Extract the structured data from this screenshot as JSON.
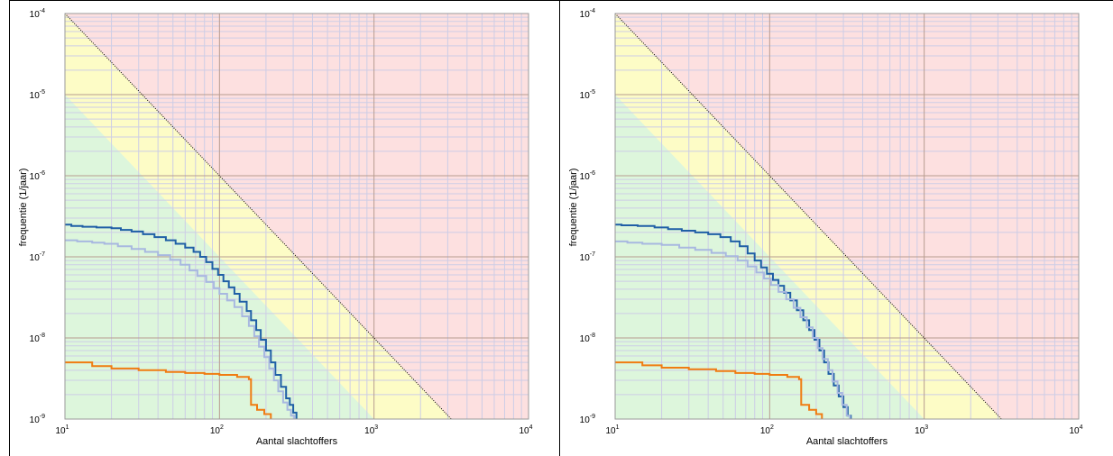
{
  "chart_data": [
    {
      "type": "line",
      "xlabel": "Aantal slachtoffers",
      "ylabel": "frequentie (1/jaar)",
      "x_scale": "log",
      "y_scale": "log",
      "xlim": [
        10,
        10000
      ],
      "ylim": [
        1e-09,
        0.0001
      ],
      "x_ticks": [
        {
          "base": "10",
          "exp": "1"
        },
        {
          "base": "10",
          "exp": "2"
        },
        {
          "base": "10",
          "exp": "3"
        },
        {
          "base": "10",
          "exp": "4"
        }
      ],
      "y_ticks": [
        {
          "base": "10",
          "exp": "-9"
        },
        {
          "base": "10",
          "exp": "-8"
        },
        {
          "base": "10",
          "exp": "-7"
        },
        {
          "base": "10",
          "exp": "-6"
        },
        {
          "base": "10",
          "exp": "-5"
        },
        {
          "base": "10",
          "exp": "-4"
        }
      ],
      "grid": true,
      "zones": {
        "unacceptable_color": "#fde0e0",
        "intermediate_color": "#fdfcc6",
        "acceptable_color": "#ddf6dc",
        "upper_limit_line": [
          [
            10,
            0.0001
          ],
          [
            3160,
            1e-09
          ]
        ],
        "lower_limit_line": [
          [
            10,
            1e-05
          ],
          [
            1000,
            1e-09
          ]
        ],
        "upper_line_color": "#000000"
      },
      "series": [
        {
          "color": "#1f5fa6",
          "points": [
            [
              10,
              2.5e-07
            ],
            [
              11,
              2.4e-07
            ],
            [
              13,
              2.35e-07
            ],
            [
              16,
              2.3e-07
            ],
            [
              20,
              2.25e-07
            ],
            [
              23,
              2.15e-07
            ],
            [
              27,
              2.05e-07
            ],
            [
              32,
              1.9e-07
            ],
            [
              38,
              1.75e-07
            ],
            [
              45,
              1.6e-07
            ],
            [
              52,
              1.45e-07
            ],
            [
              60,
              1.3e-07
            ],
            [
              68,
              1.15e-07
            ],
            [
              75,
              1e-07
            ],
            [
              82,
              8.6e-08
            ],
            [
              90,
              7.1e-08
            ],
            [
              98,
              6e-08
            ],
            [
              106,
              5e-08
            ],
            [
              115,
              4.2e-08
            ],
            [
              125,
              3.5e-08
            ],
            [
              135,
              2.8e-08
            ],
            [
              150,
              2.15e-08
            ],
            [
              160,
              1.65e-08
            ],
            [
              173,
              1.25e-08
            ],
            [
              185,
              9.5e-09
            ],
            [
              200,
              7e-09
            ],
            [
              215,
              5e-09
            ],
            [
              230,
              3.5e-09
            ],
            [
              250,
              2.5e-09
            ],
            [
              270,
              1.8e-09
            ],
            [
              285,
              1.5e-09
            ],
            [
              300,
              1.2e-09
            ],
            [
              315,
              1e-09
            ]
          ]
        },
        {
          "color": "#a8b8e0",
          "points": [
            [
              10,
              1.6e-07
            ],
            [
              12,
              1.55e-07
            ],
            [
              15,
              1.5e-07
            ],
            [
              18,
              1.45e-07
            ],
            [
              22,
              1.35e-07
            ],
            [
              27,
              1.25e-07
            ],
            [
              33,
              1.15e-07
            ],
            [
              40,
              1.05e-07
            ],
            [
              48,
              9.2e-08
            ],
            [
              56,
              8e-08
            ],
            [
              64,
              6.8e-08
            ],
            [
              72,
              5.8e-08
            ],
            [
              82,
              4.9e-08
            ],
            [
              92,
              4.1e-08
            ],
            [
              100,
              3.5e-08
            ],
            [
              112,
              2.9e-08
            ],
            [
              125,
              2.4e-08
            ],
            [
              140,
              1.85e-08
            ],
            [
              155,
              1.4e-08
            ],
            [
              168,
              1.05e-08
            ],
            [
              180,
              7.8e-09
            ],
            [
              195,
              5.8e-09
            ],
            [
              210,
              4.2e-09
            ],
            [
              225,
              3e-09
            ],
            [
              240,
              2.2e-09
            ],
            [
              258,
              1.6e-09
            ],
            [
              275,
              1.3e-09
            ],
            [
              290,
              1.1e-09
            ],
            [
              305,
              1e-09
            ]
          ]
        },
        {
          "color": "#f07c12",
          "points": [
            [
              10,
              5e-09
            ],
            [
              15,
              4.5e-09
            ],
            [
              20,
              4.2e-09
            ],
            [
              30,
              4e-09
            ],
            [
              45,
              3.8e-09
            ],
            [
              60,
              3.7e-09
            ],
            [
              80,
              3.6e-09
            ],
            [
              100,
              3.5e-09
            ],
            [
              130,
              3.3e-09
            ],
            [
              155,
              3.1e-09
            ],
            [
              160,
              1.5e-09
            ],
            [
              175,
              1.3e-09
            ],
            [
              195,
              1.15e-09
            ],
            [
              215,
              1e-09
            ]
          ]
        }
      ]
    },
    {
      "type": "line",
      "xlabel": "Aantal slachtoffers",
      "ylabel": "frequentie (1/jaar)",
      "x_scale": "log",
      "y_scale": "log",
      "xlim": [
        10,
        10000
      ],
      "ylim": [
        1e-09,
        0.0001
      ],
      "x_ticks": [
        {
          "base": "10",
          "exp": "1"
        },
        {
          "base": "10",
          "exp": "2"
        },
        {
          "base": "10",
          "exp": "3"
        },
        {
          "base": "10",
          "exp": "4"
        }
      ],
      "y_ticks": [
        {
          "base": "10",
          "exp": "-9"
        },
        {
          "base": "10",
          "exp": "-8"
        },
        {
          "base": "10",
          "exp": "-7"
        },
        {
          "base": "10",
          "exp": "-6"
        },
        {
          "base": "10",
          "exp": "-5"
        },
        {
          "base": "10",
          "exp": "-4"
        }
      ],
      "grid": true,
      "zones": {
        "unacceptable_color": "#fde0e0",
        "intermediate_color": "#fdfcc6",
        "acceptable_color": "#ddf6dc",
        "upper_limit_line": [
          [
            10,
            0.0001
          ],
          [
            3160,
            1e-09
          ]
        ],
        "lower_limit_line": [
          [
            10,
            1e-05
          ],
          [
            1000,
            1e-09
          ]
        ],
        "upper_line_color": "#000000"
      },
      "series": [
        {
          "color": "#1f5fa6",
          "points": [
            [
              10,
              2.5e-07
            ],
            [
              11,
              2.45e-07
            ],
            [
              14,
              2.4e-07
            ],
            [
              18,
              2.3e-07
            ],
            [
              22,
              2.2e-07
            ],
            [
              27,
              2.1e-07
            ],
            [
              33,
              2e-07
            ],
            [
              40,
              1.9e-07
            ],
            [
              48,
              1.75e-07
            ],
            [
              56,
              1.55e-07
            ],
            [
              64,
              1.35e-07
            ],
            [
              72,
              1.1e-07
            ],
            [
              80,
              9e-08
            ],
            [
              88,
              7.4e-08
            ],
            [
              96,
              6.2e-08
            ],
            [
              105,
              5.2e-08
            ],
            [
              114,
              4.4e-08
            ],
            [
              124,
              3.6e-08
            ],
            [
              136,
              2.9e-08
            ],
            [
              150,
              2.2e-08
            ],
            [
              165,
              1.65e-08
            ],
            [
              180,
              1.25e-08
            ],
            [
              195,
              9.5e-09
            ],
            [
              210,
              7e-09
            ],
            [
              225,
              5e-09
            ],
            [
              240,
              3.6e-09
            ],
            [
              260,
              2.6e-09
            ],
            [
              280,
              1.9e-09
            ],
            [
              300,
              1.4e-09
            ],
            [
              320,
              1.1e-09
            ],
            [
              335,
              1e-09
            ]
          ]
        },
        {
          "color": "#a8b8e0",
          "points": [
            [
              10,
              1.55e-07
            ],
            [
              12,
              1.5e-07
            ],
            [
              15,
              1.45e-07
            ],
            [
              20,
              1.4e-07
            ],
            [
              26,
              1.3e-07
            ],
            [
              33,
              1.22e-07
            ],
            [
              42,
              1.12e-07
            ],
            [
              52,
              1.02e-07
            ],
            [
              62,
              9e-08
            ],
            [
              72,
              7.6e-08
            ],
            [
              82,
              6.4e-08
            ],
            [
              92,
              5.4e-08
            ],
            [
              102,
              4.5e-08
            ],
            [
              114,
              3.7e-08
            ],
            [
              128,
              3e-08
            ],
            [
              143,
              2.35e-08
            ],
            [
              158,
              1.8e-08
            ],
            [
              174,
              1.35e-08
            ],
            [
              190,
              1e-08
            ],
            [
              205,
              7.5e-09
            ],
            [
              220,
              5.5e-09
            ],
            [
              238,
              4e-09
            ],
            [
              255,
              2.9e-09
            ],
            [
              275,
              2.1e-09
            ],
            [
              295,
              1.5e-09
            ],
            [
              315,
              1.1e-09
            ],
            [
              330,
              1e-09
            ]
          ]
        },
        {
          "color": "#f07c12",
          "points": [
            [
              10,
              5e-09
            ],
            [
              15,
              4.6e-09
            ],
            [
              20,
              4.3e-09
            ],
            [
              30,
              4.1e-09
            ],
            [
              45,
              3.9e-09
            ],
            [
              60,
              3.7e-09
            ],
            [
              80,
              3.6e-09
            ],
            [
              100,
              3.5e-09
            ],
            [
              130,
              3.3e-09
            ],
            [
              155,
              3.1e-09
            ],
            [
              160,
              1.5e-09
            ],
            [
              180,
              1.3e-09
            ],
            [
              200,
              1.15e-09
            ],
            [
              218,
              1e-09
            ]
          ]
        }
      ]
    }
  ]
}
